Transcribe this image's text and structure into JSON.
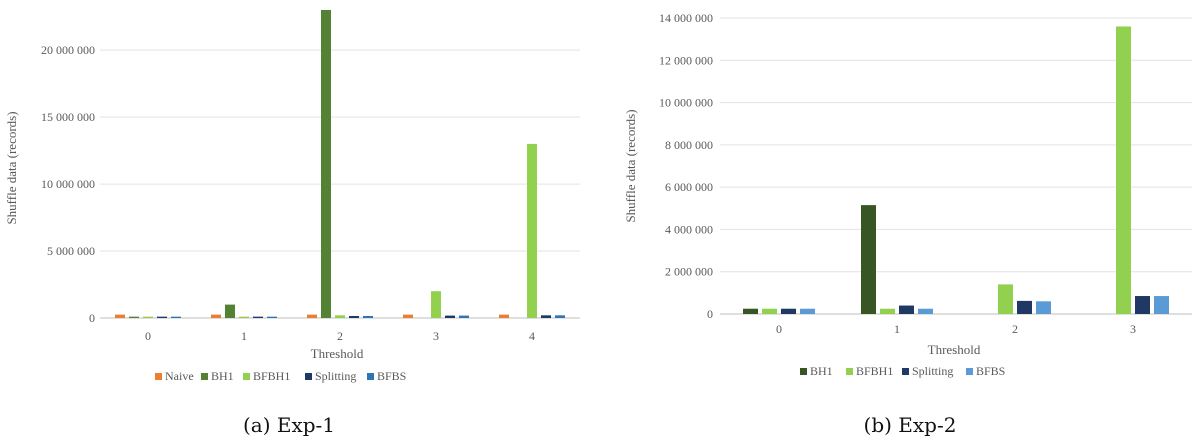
{
  "colors": {
    "Naive": "#ed7d31",
    "BH1_a": "#548235",
    "BH1_b": "#375623",
    "BFBH1": "#92d050",
    "Splitting": "#1f3864",
    "BFBS_a": "#2e75b6",
    "BFBS_b": "#5b9bd5"
  },
  "chart_data": [
    {
      "type": "bar",
      "caption": "(a) Exp-1",
      "xlabel": "Threshold",
      "ylabel": "Shuffle data (records)",
      "ylim": [
        0,
        23000000
      ],
      "yticks": [
        0,
        5000000,
        10000000,
        15000000,
        20000000
      ],
      "ytick_labels": [
        "0",
        "5 000 000",
        "10 000 000",
        "15 000 000",
        "20 000 000"
      ],
      "categories": [
        "0",
        "1",
        "2",
        "3",
        "4"
      ],
      "grid": true,
      "legend_position": "bottom",
      "series": [
        {
          "name": "Naive",
          "color_key": "Naive",
          "values": [
            250000,
            250000,
            250000,
            250000,
            250000
          ]
        },
        {
          "name": "BH1",
          "color_key": "BH1_a",
          "values": [
            100000,
            1000000,
            23000000,
            0,
            0
          ]
        },
        {
          "name": "BFBH1",
          "color_key": "BFBH1",
          "values": [
            100000,
            100000,
            200000,
            2000000,
            13000000
          ]
        },
        {
          "name": "Splitting",
          "color_key": "Splitting",
          "values": [
            100000,
            100000,
            150000,
            180000,
            200000
          ]
        },
        {
          "name": "BFBS",
          "color_key": "BFBS_a",
          "values": [
            100000,
            100000,
            150000,
            180000,
            200000
          ]
        }
      ]
    },
    {
      "type": "bar",
      "caption": "(b) Exp-2",
      "xlabel": "Threshold",
      "ylabel": "Shuffle data (records)",
      "ylim": [
        0,
        14000000
      ],
      "yticks": [
        0,
        2000000,
        4000000,
        6000000,
        8000000,
        10000000,
        12000000,
        14000000
      ],
      "ytick_labels": [
        "0",
        "2 000 000",
        "4 000 000",
        "6 000 000",
        "8 000 000",
        "10 000 000",
        "12 000 000",
        "14 000 000"
      ],
      "categories": [
        "0",
        "1",
        "2",
        "3"
      ],
      "grid": true,
      "legend_position": "bottom",
      "series": [
        {
          "name": "BH1",
          "color_key": "BH1_b",
          "values": [
            250000,
            5150000,
            0,
            0
          ]
        },
        {
          "name": "BFBH1",
          "color_key": "BFBH1",
          "values": [
            250000,
            250000,
            1400000,
            13600000
          ]
        },
        {
          "name": "Splitting",
          "color_key": "Splitting",
          "values": [
            250000,
            400000,
            620000,
            850000
          ]
        },
        {
          "name": "BFBS",
          "color_key": "BFBS_b",
          "values": [
            250000,
            250000,
            600000,
            850000
          ]
        }
      ]
    }
  ]
}
